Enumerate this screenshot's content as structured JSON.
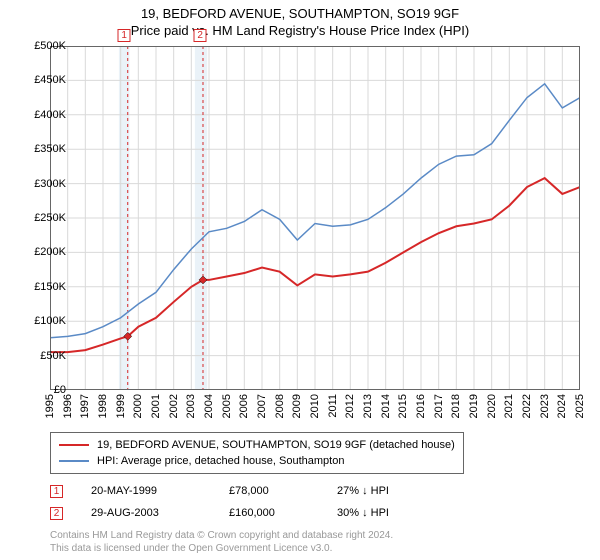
{
  "titles": {
    "main": "19, BEDFORD AVENUE, SOUTHAMPTON, SO19 9GF",
    "sub": "Price paid vs. HM Land Registry's House Price Index (HPI)"
  },
  "chart": {
    "type": "line",
    "background_color": "#ffffff",
    "grid_color": "#d9d9d9",
    "border_color": "#666666",
    "x_axis": {
      "min": 1995,
      "max": 2025,
      "ticks": [
        1995,
        1996,
        1997,
        1998,
        1999,
        2000,
        2001,
        2002,
        2003,
        2004,
        2005,
        2006,
        2007,
        2008,
        2009,
        2010,
        2011,
        2012,
        2013,
        2014,
        2015,
        2016,
        2017,
        2018,
        2019,
        2020,
        2021,
        2022,
        2023,
        2024,
        2025
      ],
      "tick_fontsize": 11,
      "tick_rotation_deg": -90
    },
    "y_axis": {
      "min": 0,
      "max": 500000,
      "ticks": [
        0,
        50000,
        100000,
        150000,
        200000,
        250000,
        300000,
        350000,
        400000,
        450000,
        500000
      ],
      "tick_labels": [
        "£0",
        "£50K",
        "£100K",
        "£150K",
        "£200K",
        "£250K",
        "£300K",
        "£350K",
        "£400K",
        "£450K",
        "£500K"
      ],
      "tick_fontsize": 11
    },
    "shade_bands": [
      {
        "x_start": 1998.9,
        "x_end": 1999.5,
        "color": "#eaf2f8"
      },
      {
        "x_start": 2003.2,
        "x_end": 2003.9,
        "color": "#eaf2f8"
      }
    ],
    "marker_dashes": [
      {
        "x": 1999.4,
        "color": "#d62728"
      },
      {
        "x": 2003.66,
        "color": "#d62728"
      }
    ],
    "series": [
      {
        "name": "property",
        "label": "19, BEDFORD AVENUE, SOUTHAMPTON, SO19 9GF (detached house)",
        "color": "#d62728",
        "line_width": 2,
        "points": [
          [
            1995,
            55000
          ],
          [
            1996,
            55000
          ],
          [
            1997,
            58000
          ],
          [
            1998,
            66000
          ],
          [
            1999,
            75000
          ],
          [
            1999.4,
            78000
          ],
          [
            2000,
            92000
          ],
          [
            2001,
            105000
          ],
          [
            2002,
            128000
          ],
          [
            2003,
            150000
          ],
          [
            2003.66,
            160000
          ],
          [
            2004,
            160000
          ],
          [
            2005,
            165000
          ],
          [
            2006,
            170000
          ],
          [
            2007,
            178000
          ],
          [
            2008,
            172000
          ],
          [
            2009,
            152000
          ],
          [
            2010,
            168000
          ],
          [
            2011,
            165000
          ],
          [
            2012,
            168000
          ],
          [
            2013,
            172000
          ],
          [
            2014,
            185000
          ],
          [
            2015,
            200000
          ],
          [
            2016,
            215000
          ],
          [
            2017,
            228000
          ],
          [
            2018,
            238000
          ],
          [
            2019,
            242000
          ],
          [
            2020,
            248000
          ],
          [
            2021,
            268000
          ],
          [
            2022,
            295000
          ],
          [
            2023,
            308000
          ],
          [
            2024,
            285000
          ],
          [
            2025,
            295000
          ]
        ],
        "markers": [
          {
            "id": "1",
            "x": 1999.4,
            "y": 78000
          },
          {
            "id": "2",
            "x": 2003.66,
            "y": 160000
          }
        ]
      },
      {
        "name": "hpi",
        "label": "HPI: Average price, detached house, Southampton",
        "color": "#5a8ac6",
        "line_width": 1.5,
        "points": [
          [
            1995,
            76000
          ],
          [
            1996,
            78000
          ],
          [
            1997,
            82000
          ],
          [
            1998,
            92000
          ],
          [
            1999,
            105000
          ],
          [
            2000,
            125000
          ],
          [
            2001,
            142000
          ],
          [
            2002,
            175000
          ],
          [
            2003,
            205000
          ],
          [
            2004,
            230000
          ],
          [
            2005,
            235000
          ],
          [
            2006,
            245000
          ],
          [
            2007,
            262000
          ],
          [
            2008,
            248000
          ],
          [
            2009,
            218000
          ],
          [
            2010,
            242000
          ],
          [
            2011,
            238000
          ],
          [
            2012,
            240000
          ],
          [
            2013,
            248000
          ],
          [
            2014,
            265000
          ],
          [
            2015,
            285000
          ],
          [
            2016,
            308000
          ],
          [
            2017,
            328000
          ],
          [
            2018,
            340000
          ],
          [
            2019,
            342000
          ],
          [
            2020,
            358000
          ],
          [
            2021,
            392000
          ],
          [
            2022,
            425000
          ],
          [
            2023,
            445000
          ],
          [
            2024,
            410000
          ],
          [
            2025,
            425000
          ]
        ]
      }
    ],
    "plot_markers": [
      {
        "id": "1",
        "x": 1999.2,
        "color": "#d62728"
      },
      {
        "id": "2",
        "x": 2003.5,
        "color": "#d62728"
      }
    ]
  },
  "legend": {
    "items": [
      {
        "color": "#d62728",
        "label": "19, BEDFORD AVENUE, SOUTHAMPTON, SO19 9GF (detached house)"
      },
      {
        "color": "#5a8ac6",
        "label": "HPI: Average price, detached house, Southampton"
      }
    ]
  },
  "transactions": [
    {
      "id": "1",
      "date": "20-MAY-1999",
      "price": "£78,000",
      "diff": "27% ↓ HPI",
      "color": "#d62728"
    },
    {
      "id": "2",
      "date": "29-AUG-2003",
      "price": "£160,000",
      "diff": "30% ↓ HPI",
      "color": "#d62728"
    }
  ],
  "attribution": {
    "line1": "Contains HM Land Registry data © Crown copyright and database right 2024.",
    "line2": "This data is licensed under the Open Government Licence v3.0."
  }
}
